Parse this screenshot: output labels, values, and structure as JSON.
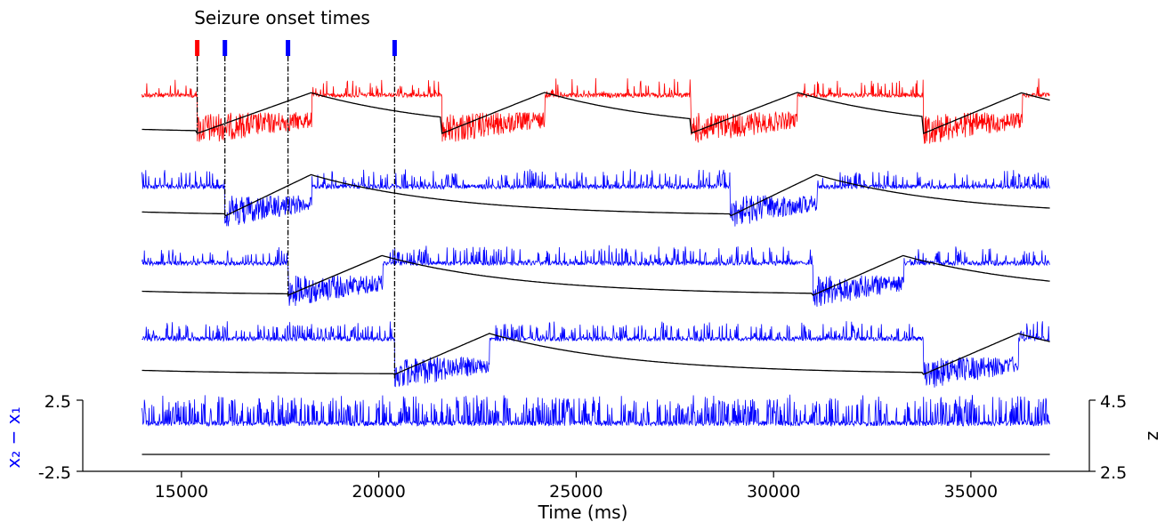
{
  "chart_data": {
    "type": "line",
    "title": "Seizure onset times",
    "xlabel": "Time (ms)",
    "ylabel_left": "x₂ − x₁",
    "ylabel_right": "z",
    "xlim": [
      12500,
      38000
    ],
    "x_ticks": [
      "15000",
      "20000",
      "25000",
      "30000",
      "35000"
    ],
    "x_tick_values": [
      15000,
      20000,
      25000,
      30000,
      35000
    ],
    "left_ticks": [
      "2.5",
      "-2.5"
    ],
    "right_ticks": [
      "4.5",
      "2.5"
    ],
    "signal_range": [
      14000,
      37000
    ],
    "onset_markers": [
      {
        "time": 15400,
        "color": "#ff0000",
        "to_trace": 0
      },
      {
        "time": 16100,
        "color": "#0000ff",
        "to_trace": 1
      },
      {
        "time": 17700,
        "color": "#0000ff",
        "to_trace": 2
      },
      {
        "time": 20400,
        "color": "#0000ff",
        "to_trace": 3
      }
    ],
    "series": [
      {
        "color": "#ff0000",
        "seizures": [
          [
            15400,
            18300
          ],
          [
            21600,
            24200
          ],
          [
            27900,
            30600
          ],
          [
            33800,
            36300
          ]
        ]
      },
      {
        "color": "#0000ff",
        "seizures": [
          [
            16100,
            18300
          ],
          [
            28900,
            31100
          ]
        ]
      },
      {
        "color": "#0000ff",
        "seizures": [
          [
            17700,
            20100
          ],
          [
            31000,
            33300
          ]
        ]
      },
      {
        "color": "#0000ff",
        "seizures": [
          [
            20400,
            22800
          ],
          [
            33800,
            36200
          ]
        ]
      },
      {
        "color": "#0000ff",
        "seizures": []
      }
    ],
    "axis_color": "#0000ff",
    "z_line_color": "#000000"
  }
}
